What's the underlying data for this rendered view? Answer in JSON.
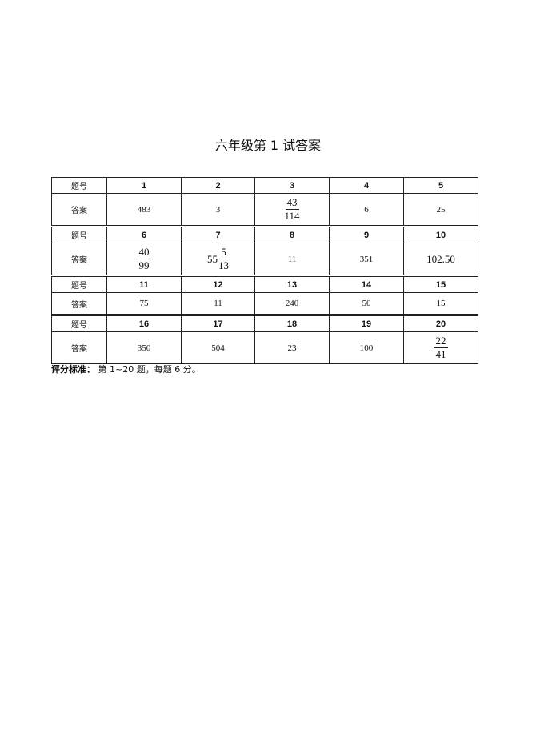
{
  "title": "六年级第 1 试答案",
  "table": {
    "header_label": "题号",
    "answer_label": "答案",
    "groups": [
      {
        "numbers": [
          "1",
          "2",
          "3",
          "4",
          "5"
        ],
        "answers": [
          {
            "value": "483"
          },
          {
            "value": "3"
          },
          {
            "num": "43",
            "den": "114"
          },
          {
            "value": "6"
          },
          {
            "value": "25"
          }
        ]
      },
      {
        "numbers": [
          "6",
          "7",
          "8",
          "9",
          "10"
        ],
        "answers": [
          {
            "num": "40",
            "den": "99"
          },
          {
            "whole": "55",
            "num": "5",
            "den": "13"
          },
          {
            "value": "11"
          },
          {
            "value": "351"
          },
          {
            "value": "102.50",
            "big": true
          }
        ]
      },
      {
        "numbers": [
          "11",
          "12",
          "13",
          "14",
          "15"
        ],
        "answers": [
          {
            "value": "75"
          },
          {
            "value": "11"
          },
          {
            "value": "240"
          },
          {
            "value": "50"
          },
          {
            "value": "15"
          }
        ]
      },
      {
        "numbers": [
          "16",
          "17",
          "18",
          "19",
          "20"
        ],
        "answers": [
          {
            "value": "350"
          },
          {
            "value": "504"
          },
          {
            "value": "23"
          },
          {
            "value": "100"
          },
          {
            "num": "22",
            "den": "41"
          }
        ]
      }
    ]
  },
  "note": {
    "label": "评分标准：",
    "text": " 第 1~20 题，每题 6 分。"
  }
}
